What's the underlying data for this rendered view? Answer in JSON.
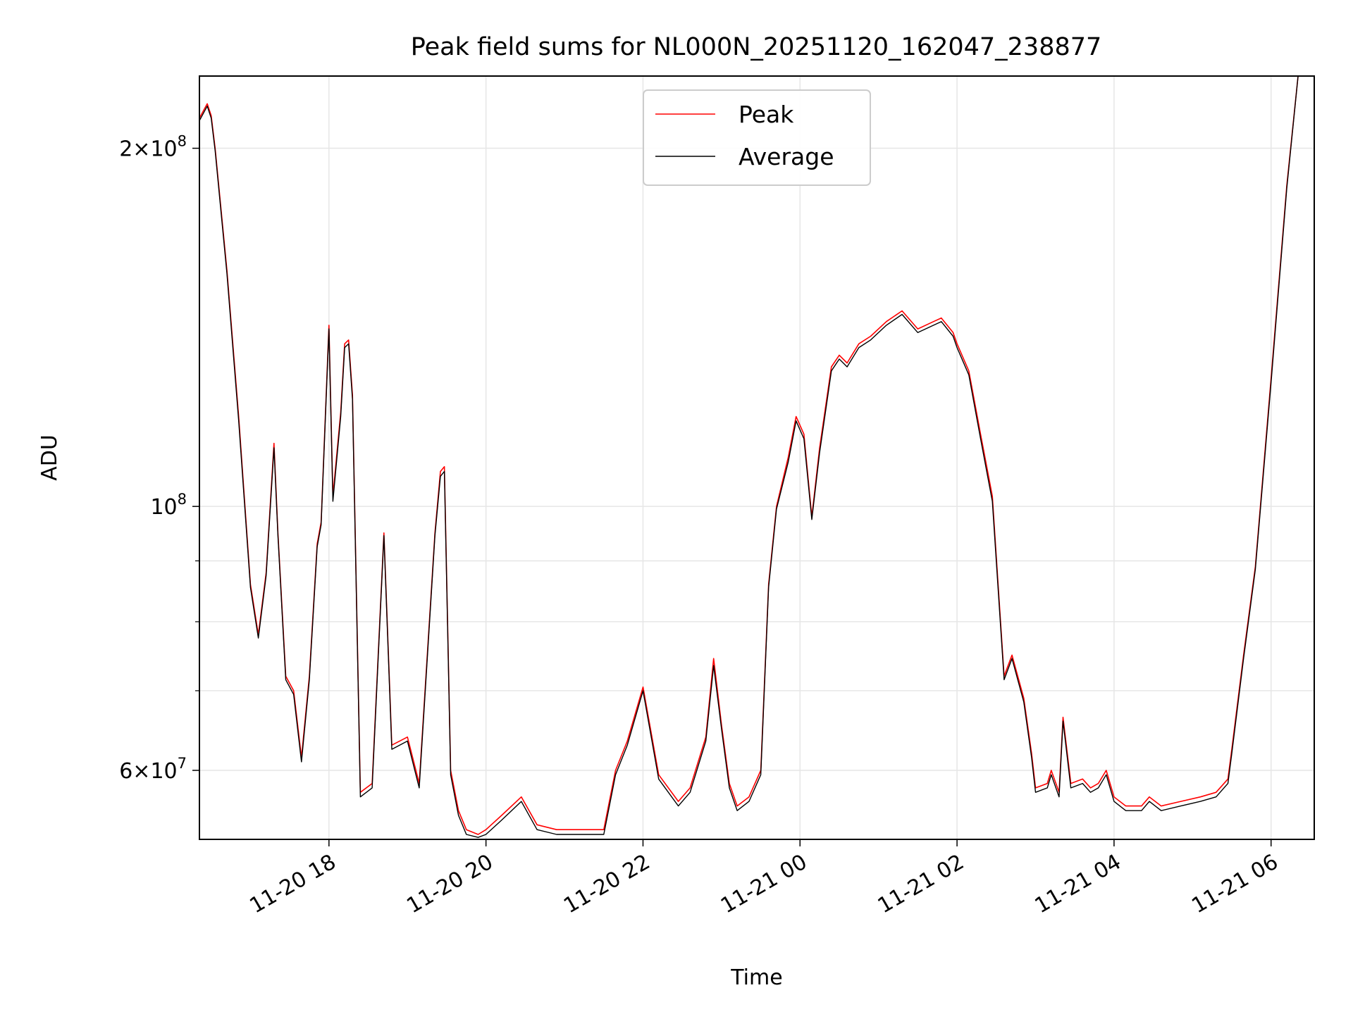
{
  "colors": {
    "peak": "#ff0000",
    "average": "#000000",
    "grid": "#e6e6e6",
    "legend_border": "#cccccc"
  },
  "chart_data": {
    "type": "line",
    "title": "Peak field sums for NL000N_20251120_162047_238877",
    "xlabel": "Time",
    "ylabel": "ADU",
    "y_scale": "log",
    "xlim": [
      16.35,
      30.55
    ],
    "ylim": [
      52500000,
      230000000
    ],
    "x_ticks": [
      {
        "label": "11-20 18",
        "value": 18
      },
      {
        "label": "11-20 20",
        "value": 20
      },
      {
        "label": "11-20 22",
        "value": 22
      },
      {
        "label": "11-21 00",
        "value": 24
      },
      {
        "label": "11-21 02",
        "value": 26
      },
      {
        "label": "11-21 04",
        "value": 28
      },
      {
        "label": "11-21 06",
        "value": 30
      }
    ],
    "y_ticks": [
      {
        "value": 60000000,
        "mantissa": "6",
        "times": "×",
        "base": "10",
        "exp": "7"
      },
      {
        "value": 100000000,
        "mantissa": "",
        "times": "",
        "base": "10",
        "exp": "8"
      },
      {
        "value": 200000000,
        "mantissa": "2",
        "times": "×",
        "base": "10",
        "exp": "8"
      }
    ],
    "y_minor_ticks": [
      70000000,
      80000000,
      90000000
    ],
    "grid": true,
    "legend_position": "top-center",
    "series": [
      {
        "name": "Peak",
        "label": "Peak",
        "color": "#ff0000",
        "x": [
          16.35,
          16.45,
          16.5,
          16.55,
          16.7,
          16.85,
          17.0,
          17.1,
          17.2,
          17.3,
          17.35,
          17.45,
          17.55,
          17.65,
          17.75,
          17.85,
          17.9,
          18.0,
          18.05,
          18.15,
          18.2,
          18.25,
          18.3,
          18.4,
          18.55,
          18.7,
          18.8,
          19.0,
          19.15,
          19.35,
          19.42,
          19.47,
          19.55,
          19.65,
          19.75,
          19.9,
          20.0,
          20.2,
          20.45,
          20.65,
          20.9,
          21.2,
          21.5,
          21.65,
          21.8,
          22.0,
          22.2,
          22.45,
          22.6,
          22.8,
          22.9,
          23.0,
          23.1,
          23.2,
          23.35,
          23.5,
          23.6,
          23.7,
          23.85,
          23.95,
          24.05,
          24.15,
          24.25,
          24.4,
          24.5,
          24.6,
          24.75,
          24.9,
          25.1,
          25.3,
          25.5,
          25.7,
          25.8,
          25.95,
          26.0,
          26.15,
          26.3,
          26.45,
          26.6,
          26.7,
          26.85,
          26.95,
          27.0,
          27.15,
          27.2,
          27.3,
          27.35,
          27.45,
          27.6,
          27.7,
          27.8,
          27.9,
          28.0,
          28.15,
          28.35,
          28.45,
          28.6,
          28.85,
          29.1,
          29.3,
          29.45,
          29.5,
          29.65,
          29.8,
          30.0,
          30.2,
          30.35,
          30.45,
          30.55
        ],
        "values": [
          212000000,
          218000000,
          213000000,
          200000000,
          158000000,
          119000000,
          86000000,
          78000000,
          88000000,
          113000000,
          95000000,
          72000000,
          70000000,
          61500000,
          72000000,
          93000000,
          97000000,
          142000000,
          102000000,
          120000000,
          137000000,
          138000000,
          124000000,
          57500000,
          58500000,
          95000000,
          63000000,
          64000000,
          58500000,
          95000000,
          107000000,
          108000000,
          60000000,
          55500000,
          53500000,
          53000000,
          53500000,
          55000000,
          57000000,
          54000000,
          53500000,
          53500000,
          53500000,
          60000000,
          63500000,
          70500000,
          59500000,
          56500000,
          58000000,
          64000000,
          74500000,
          65500000,
          58500000,
          56000000,
          57000000,
          60000000,
          86000000,
          100000000,
          110000000,
          119000000,
          115000000,
          98000000,
          112000000,
          131000000,
          134000000,
          132000000,
          137000000,
          139000000,
          143000000,
          146000000,
          141000000,
          143000000,
          144000000,
          140000000,
          137000000,
          130000000,
          115000000,
          102000000,
          72000000,
          75000000,
          69000000,
          62000000,
          58000000,
          58500000,
          60000000,
          57500000,
          66500000,
          58500000,
          59000000,
          58000000,
          58500000,
          60000000,
          57000000,
          56000000,
          56000000,
          57000000,
          56000000,
          56500000,
          57000000,
          57500000,
          59000000,
          62500000,
          75000000,
          89000000,
          128000000,
          186000000,
          232000000,
          232000000,
          232000000
        ]
      },
      {
        "name": "Average",
        "label": "Average",
        "color": "#000000",
        "x": [
          16.35,
          16.45,
          16.5,
          16.55,
          16.7,
          16.85,
          17.0,
          17.1,
          17.2,
          17.3,
          17.35,
          17.45,
          17.55,
          17.65,
          17.75,
          17.85,
          17.9,
          18.0,
          18.05,
          18.15,
          18.2,
          18.25,
          18.3,
          18.4,
          18.55,
          18.7,
          18.8,
          19.0,
          19.15,
          19.35,
          19.42,
          19.47,
          19.55,
          19.65,
          19.75,
          19.9,
          20.0,
          20.2,
          20.45,
          20.65,
          20.9,
          21.2,
          21.5,
          21.65,
          21.8,
          22.0,
          22.2,
          22.45,
          22.6,
          22.8,
          22.9,
          23.0,
          23.1,
          23.2,
          23.35,
          23.5,
          23.6,
          23.7,
          23.85,
          23.95,
          24.05,
          24.15,
          24.25,
          24.4,
          24.5,
          24.6,
          24.75,
          24.9,
          25.1,
          25.3,
          25.5,
          25.7,
          25.8,
          25.95,
          26.0,
          26.15,
          26.3,
          26.45,
          26.6,
          26.7,
          26.85,
          26.95,
          27.0,
          27.15,
          27.2,
          27.3,
          27.35,
          27.45,
          27.6,
          27.7,
          27.8,
          27.9,
          28.0,
          28.15,
          28.35,
          28.45,
          28.6,
          28.85,
          29.1,
          29.3,
          29.45,
          29.5,
          29.65,
          29.8,
          30.0,
          30.2,
          30.35,
          30.45,
          30.55
        ],
        "values": [
          211000000,
          217000000,
          212000000,
          199000000,
          157000000,
          118000000,
          85500000,
          77500000,
          87500000,
          112000000,
          94500000,
          71500000,
          69500000,
          61000000,
          71500000,
          92500000,
          96500000,
          141000000,
          101000000,
          119000000,
          136000000,
          137000000,
          123000000,
          57000000,
          58000000,
          94500000,
          62500000,
          63500000,
          58000000,
          94500000,
          106000000,
          107000000,
          59500000,
          55000000,
          53000000,
          52700000,
          53000000,
          54500000,
          56500000,
          53500000,
          53000000,
          53000000,
          53000000,
          59500000,
          63000000,
          70000000,
          59000000,
          56000000,
          57500000,
          63500000,
          73500000,
          65000000,
          58000000,
          55500000,
          56500000,
          59500000,
          85500000,
          99500000,
          109000000,
          118000000,
          114000000,
          97500000,
          111000000,
          130000000,
          133000000,
          131000000,
          136000000,
          138000000,
          142000000,
          145000000,
          140000000,
          142000000,
          143000000,
          139000000,
          136000000,
          129000000,
          114000000,
          101000000,
          71500000,
          74500000,
          68500000,
          61500000,
          57500000,
          58000000,
          59500000,
          57000000,
          66000000,
          58000000,
          58500000,
          57500000,
          58000000,
          59500000,
          56500000,
          55500000,
          55500000,
          56500000,
          55500000,
          56000000,
          56500000,
          57000000,
          58500000,
          62000000,
          74500000,
          88500000,
          127000000,
          185000000,
          232000000,
          232000000,
          232000000
        ]
      }
    ]
  }
}
